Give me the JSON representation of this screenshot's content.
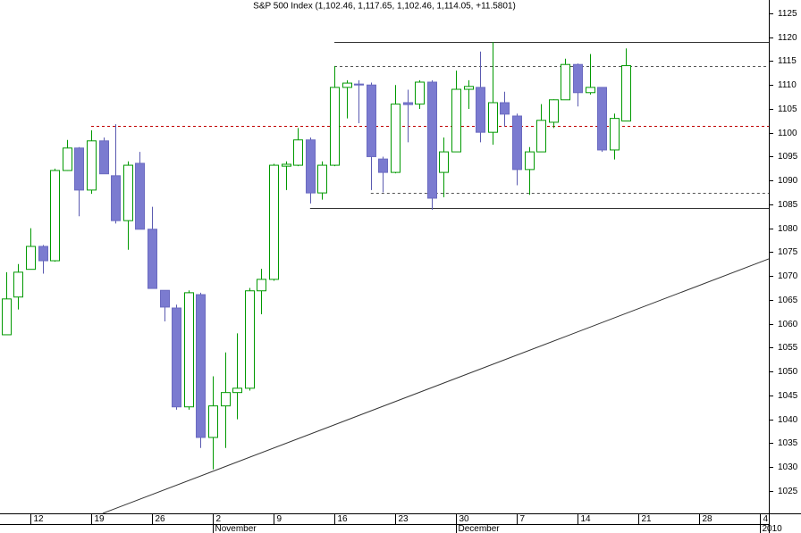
{
  "chart_data": {
    "type": "candlestick",
    "title": "S&P 500 Index (1,102.46, 1,117.65, 1,102.46, 1,114.05, +11.5801)",
    "series": [
      {
        "up_color": "#009900",
        "down_color": "#7b7bd0",
        "open": [
          1057.7,
          1065.6,
          1071.4,
          1076.2,
          1073.2,
          1092.1,
          1096.8,
          1088,
          1098.3,
          1091,
          1081.6,
          1093.6,
          1079.8,
          1067,
          1063.3,
          1042.6,
          1066.1,
          1036.2,
          1042.8,
          1045.6,
          1046.5,
          1066.9,
          1069.3,
          1093,
          1093.2,
          1098.5,
          1087.4,
          1093.2,
          1109.5,
          1110.2,
          1110,
          1094.5,
          1091.7,
          1106.3,
          1106,
          1110.6,
          1091.7,
          1096,
          1109.1,
          1109.5,
          1100.1,
          1106.3,
          1103.5,
          1092.3,
          1096,
          1102.2,
          1106.9,
          1114.3,
          1108.4,
          1109.5,
          1096.4,
          1102.46
        ],
        "high": [
          1070.8,
          1072.5,
          1080,
          1076.5,
          1092.5,
          1098.5,
          1097,
          1100.5,
          1099,
          1101.8,
          1094,
          1096,
          1084.5,
          1067,
          1064,
          1067,
          1066.5,
          1049,
          1054,
          1058,
          1067.5,
          1071.5,
          1093.5,
          1094,
          1101,
          1099,
          1094,
          1114,
          1111,
          1111,
          1110.5,
          1095,
          1110,
          1109,
          1111,
          1111,
          1099,
          1113,
          1111,
          1117,
          1119,
          1108.6,
          1104,
          1097,
          1106,
          1107,
          1115.5,
          1114.5,
          1116.5,
          1109.5,
          1104,
          1117.65
        ],
        "low": [
          1057.7,
          1063,
          1071.4,
          1070.5,
          1073,
          1092,
          1082.5,
          1087.2,
          1091.4,
          1081,
          1075.5,
          1079.8,
          1067.4,
          1060.5,
          1042,
          1042,
          1034,
          1029.5,
          1034,
          1040,
          1046,
          1062,
          1069,
          1088,
          1093,
          1085.2,
          1086,
          1093,
          1103,
          1102,
          1088,
          1087.5,
          1091.5,
          1098,
          1105,
          1083.9,
          1086.5,
          1096,
          1105,
          1098,
          1097.5,
          1101.3,
          1089,
          1087,
          1096,
          1101,
          1106.9,
          1105.5,
          1108,
          1096,
          1094.4,
          1102.46
        ],
        "close": [
          1065.2,
          1070.8,
          1076.2,
          1073.2,
          1092.1,
          1096.8,
          1088,
          1098.3,
          1091.4,
          1081.6,
          1093.2,
          1079.8,
          1067.4,
          1063.5,
          1042.6,
          1066.5,
          1036.2,
          1042.8,
          1045.6,
          1046.5,
          1066.9,
          1069.3,
          1093.2,
          1093.4,
          1098.5,
          1087.4,
          1093.2,
          1109.5,
          1110.4,
          1110,
          1095,
          1091.7,
          1106,
          1105.9,
          1110.6,
          1086.3,
          1096,
          1109.1,
          1109.7,
          1100.1,
          1106.3,
          1103.9,
          1092.3,
          1096,
          1102.6,
          1106.9,
          1114.3,
          1108.4,
          1109.5,
          1096.4,
          1103,
          1114.05
        ]
      }
    ],
    "levels": [
      {
        "value": 1119,
        "from": 27,
        "to": 62.73,
        "style": "solid",
        "color": "#333333"
      },
      {
        "value": 1114,
        "from": 27,
        "to": 62.73,
        "style": "dashed",
        "color": "#555555"
      },
      {
        "value": 1101.5,
        "from": 7,
        "to": 62.73,
        "style": "dashed",
        "color": "#c00000"
      },
      {
        "value": 1087.5,
        "from": 30,
        "to": 62.73,
        "style": "dashed",
        "color": "#555555"
      },
      {
        "value": 1084.3,
        "from": 25,
        "to": 62.73,
        "style": "solid",
        "color": "#333333"
      }
    ],
    "trendline": {
      "from": [
        7.95,
        1020.3
      ],
      "to": [
        62.73,
        1073.6
      ],
      "color": "#333333"
    },
    "xlim": [
      -0.5,
      62.73
    ],
    "ylim": [
      1020.3,
      1127.8
    ],
    "yticks": [
      1025,
      1030,
      1035,
      1040,
      1045,
      1050,
      1055,
      1060,
      1065,
      1070,
      1075,
      1080,
      1085,
      1090,
      1095,
      1100,
      1105,
      1110,
      1115,
      1120,
      1125
    ],
    "xticks": [
      {
        "value": 2,
        "label": "12"
      },
      {
        "value": 7,
        "label": "19"
      },
      {
        "value": 12,
        "label": "26"
      },
      {
        "value": 17,
        "label": "2"
      },
      {
        "value": 22,
        "label": "9"
      },
      {
        "value": 27,
        "label": "16"
      },
      {
        "value": 32,
        "label": "23"
      },
      {
        "value": 37,
        "label": "30"
      },
      {
        "value": 42,
        "label": "7"
      },
      {
        "value": 47,
        "label": "14"
      },
      {
        "value": 52,
        "label": "21"
      },
      {
        "value": 57,
        "label": "28"
      },
      {
        "value": 62,
        "label": "4"
      }
    ],
    "month_ticks": [
      {
        "value": 17,
        "label": "November"
      },
      {
        "value": 37,
        "label": "December"
      },
      {
        "value": 62,
        "label": "2010"
      }
    ]
  }
}
